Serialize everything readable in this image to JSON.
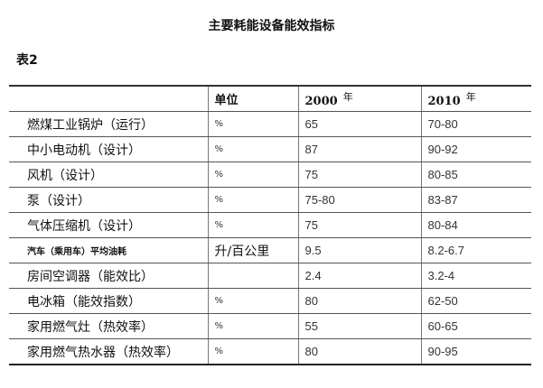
{
  "title": "主要耗能设备能效指标",
  "table_label": "表2",
  "headers": {
    "name": "",
    "unit": "单位",
    "y2000": "2000",
    "y2000_suffix": "年",
    "y2010": "2010",
    "y2010_suffix": "年"
  },
  "rows": [
    {
      "name": "燃煤工业锅炉（运行）",
      "unit": "%",
      "y2000": "65",
      "y2010": "70-80"
    },
    {
      "name": "中小电动机（设计）",
      "unit": "%",
      "y2000": "87",
      "y2010": "90-92"
    },
    {
      "name": "风机（设计）",
      "unit": "%",
      "y2000": "75",
      "y2010": "80-85"
    },
    {
      "name": "泵（设计）",
      "unit": "%",
      "y2000": "75-80",
      "y2010": "83-87"
    },
    {
      "name": "气体压缩机（设计）",
      "unit": "%",
      "y2000": "75",
      "y2010": "80-84"
    },
    {
      "name": "汽车（乘用车）平均油耗",
      "unit": "升/百公里",
      "y2000": "9.5",
      "y2010": "8.2-6.7"
    },
    {
      "name": "房间空调器（能效比）",
      "unit": "",
      "y2000": "2.4",
      "y2010": "3.2-4"
    },
    {
      "name": "电冰箱（能效指数）",
      "unit": "%",
      "y2000": "80",
      "y2010": "62-50"
    },
    {
      "name": "家用燃气灶（热效率）",
      "unit": "%",
      "y2000": "55",
      "y2010": "60-65"
    },
    {
      "name": "家用燃气热水器（热效率）",
      "unit": "%",
      "y2000": "80",
      "y2010": "90-95"
    }
  ]
}
